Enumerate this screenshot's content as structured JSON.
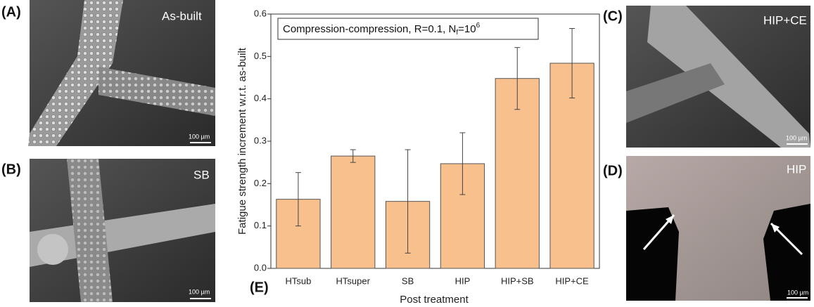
{
  "chart_data": {
    "type": "bar",
    "annotation": {
      "text": "Compression-compression, R=0.1, N",
      "sub": "f",
      "mid": "=10",
      "sup": "6"
    },
    "xlabel": "Post treatment",
    "ylabel": "Fatigue strength increment w.r.t. as-built",
    "panel_label": "(E)",
    "categories": [
      "HTsub",
      "HTsuper",
      "SB",
      "HIP",
      "HIP+SB",
      "HIP+CE"
    ],
    "values": [
      0.163,
      0.265,
      0.158,
      0.247,
      0.448,
      0.484
    ],
    "errors": [
      0.063,
      0.015,
      0.122,
      0.073,
      0.073,
      0.082
    ],
    "color": "#f7c08d",
    "ylim": [
      0,
      0.6
    ],
    "yticks": [
      {
        "value": 0,
        "label": "0.0"
      },
      0.1,
      0.2,
      0.3,
      0.4,
      0.5,
      0.6
    ]
  },
  "panels": [
    {
      "label": "(A)",
      "caption": "As-built",
      "scale": "100 µm"
    },
    {
      "label": "(B)",
      "caption": "SB",
      "scale": "100 µm"
    },
    {
      "label": "(C)",
      "caption": "HIP+CE",
      "scale": "100 µm"
    },
    {
      "label": "(D)",
      "caption": "HIP",
      "scale": "100 µm"
    }
  ]
}
